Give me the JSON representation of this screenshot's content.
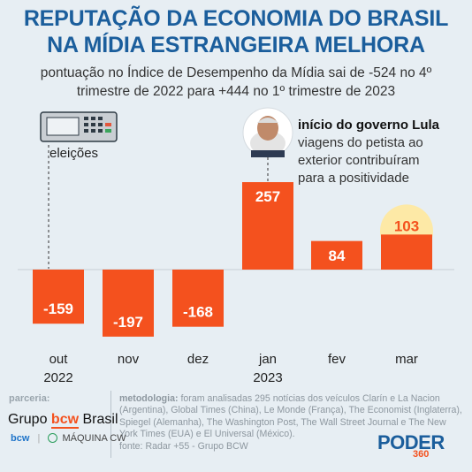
{
  "header": {
    "title_line1": "REPUTAÇÃO DA ECONOMIA DO BRASIL",
    "title_line2": "NA MÍDIA ESTRANGEIRA MELHORA",
    "subtitle_line1": "pontuação no Índice de Desempenho da Mídia sai de -524 no 4º",
    "subtitle_line2": "trimestre de 2022 para +444 no 1º trimestre de 2023"
  },
  "annotations": {
    "eleicoes": "eleições",
    "lula_title": "início do governo Lula",
    "lula_line1": "viagens do petista ao",
    "lula_line2": "exterior contribuíram",
    "lula_line3": "para a positividade"
  },
  "chart_data": {
    "type": "bar",
    "categories": [
      "out\n2022",
      "nov",
      "dez",
      "jan\n2023",
      "fev",
      "mar"
    ],
    "category_lines": [
      [
        "out",
        "2022"
      ],
      [
        "nov"
      ],
      [
        "dez"
      ],
      [
        "jan",
        "2023"
      ],
      [
        "fev"
      ],
      [
        "mar"
      ]
    ],
    "values": [
      -159,
      -197,
      -168,
      257,
      84,
      103
    ],
    "value_labels": [
      "-159",
      "-197",
      "-168",
      "257",
      "84",
      "103"
    ],
    "highlighted_index": 5,
    "ylim": [
      -250,
      300
    ],
    "grid": false
  },
  "colors": {
    "bar": "#f4511e",
    "title": "#1b5e9c",
    "highlight": "#fde9a6",
    "background": "#e7eef3"
  },
  "footer": {
    "parceria_label": "parceria:",
    "logo_left": "Grupo",
    "logo_bcw": "bcw",
    "logo_right": "Brasil",
    "logo_small_1": "bcw",
    "logo_small_2": "MÁQUINA CW",
    "metodologia_label": "metodologia:",
    "metodologia_text": "foram analisadas 295 notícias dos veículos Clarín e La Nacion (Argentina), Global Times (China), Le Monde (França), The Economist (Inglaterra), Spiegel (Alemanha), The Washington Post, The Wall Street Journal e The New York Times (EUA) e El Universal (México).",
    "fonte": "fonte: Radar +55 - Grupo BCW",
    "brand": "PODER",
    "brand_sub": "360"
  }
}
